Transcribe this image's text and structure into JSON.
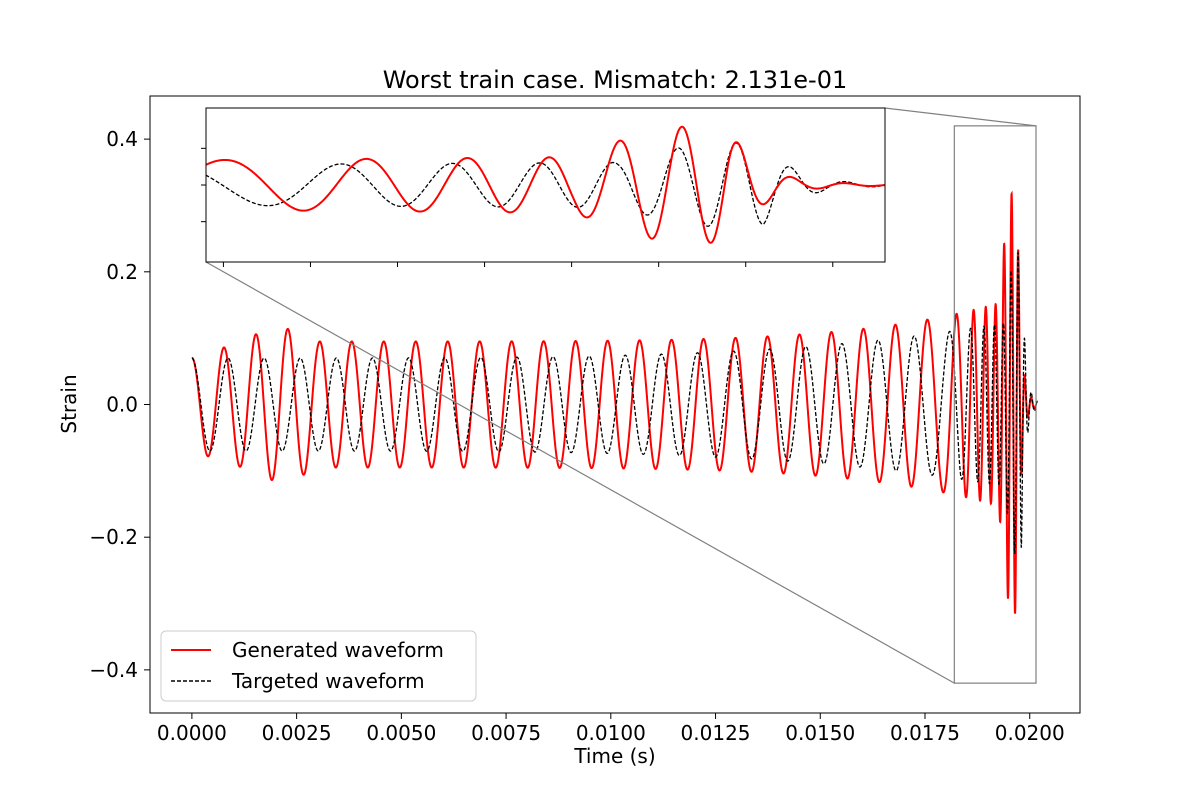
{
  "chart_data": {
    "type": "line",
    "title": "Worst train case. Mismatch: 2.131e-01",
    "xlabel": "Time (s)",
    "ylabel": "Strain",
    "xlim": [
      -0.001,
      0.0212
    ],
    "ylim": [
      -0.465,
      0.465
    ],
    "xticks": [
      0.0,
      0.0025,
      0.005,
      0.0075,
      0.01,
      0.0125,
      0.015,
      0.0175,
      0.02
    ],
    "xtick_labels": [
      "0.0000",
      "0.0025",
      "0.0050",
      "0.0075",
      "0.0100",
      "0.0125",
      "0.0150",
      "0.0175",
      "0.0200"
    ],
    "yticks": [
      -0.4,
      -0.2,
      0.0,
      0.2,
      0.4
    ],
    "ytick_labels": [
      "−0.4",
      "−0.2",
      "0.0",
      "0.2",
      "0.4"
    ],
    "grid": false,
    "legend_position": "lower-left",
    "series": [
      {
        "name": "Generated waveform",
        "color": "#ff0000",
        "style": "solid",
        "t_end": 0.02015,
        "peak_abs": 0.32,
        "peak_time": 0.0196
      },
      {
        "name": "Targeted waveform",
        "color": "#000000",
        "style": "dashed",
        "t_end": 0.0202,
        "peak_abs": 0.23,
        "peak_time": 0.0197
      }
    ],
    "inset": {
      "type": "zoom",
      "xlim": [
        0.0182,
        0.02015
      ],
      "ylim": [
        -0.42,
        0.42
      ],
      "connector_color": "#808080"
    }
  }
}
